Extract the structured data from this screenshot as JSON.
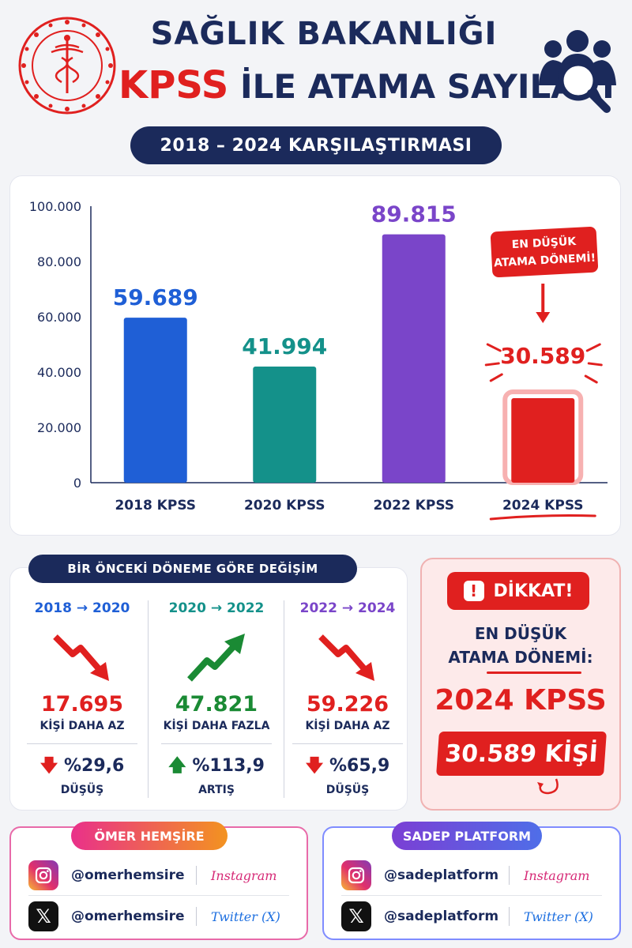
{
  "header": {
    "title_line1": "SAĞLIK BAKANLIĞI",
    "title_kpss": "KPSS",
    "title_rest": " İLE ATAMA SAYILARI",
    "subtitle": "2018 – 2024 KARŞILAŞTIRMASI",
    "logo_icon": "ministry-caduceus-seal",
    "people_icon": "people-search-icon"
  },
  "colors": {
    "navy": "#1b2a5b",
    "red": "#e0201f",
    "blue": "#1f5fd6",
    "teal": "#14918a",
    "purple": "#7a45c9",
    "green": "#1a8a34"
  },
  "chart_data": {
    "type": "bar",
    "categories": [
      "2018 KPSS",
      "2020 KPSS",
      "2022 KPSS",
      "2024 KPSS"
    ],
    "values": [
      59689,
      41994,
      89815,
      30589
    ],
    "value_labels": [
      "59.689",
      "41.994",
      "89.815",
      "30.589"
    ],
    "bar_colors": [
      "#1f5fd6",
      "#14918a",
      "#7a45c9",
      "#e0201f"
    ],
    "yticks": [
      "0",
      "20.000",
      "40.000",
      "60.000",
      "80.000",
      "100.000"
    ],
    "ylim": [
      0,
      100000
    ],
    "title": "",
    "xlabel": "",
    "ylabel": "",
    "grid": false,
    "annotation": "EN DÜŞÜK ATAMA DÖNEMİ!",
    "highlight_category": "2024 KPSS"
  },
  "changes": {
    "title": "BİR ÖNCEKİ DÖNEME GÖRE DEĞİŞİM",
    "items": [
      {
        "period": "2018 → 2020",
        "number": "17.695",
        "desc": "KİŞİ DAHA AZ",
        "percent": "%29,6",
        "direction": "DÜŞÜŞ",
        "trend": "down",
        "period_color": "#1f5fd6",
        "num_color": "#e0201f"
      },
      {
        "period": "2020 → 2022",
        "number": "47.821",
        "desc": "KİŞİ DAHA FAZLA",
        "percent": "%113,9",
        "direction": "ARTIŞ",
        "trend": "up",
        "period_color": "#14918a",
        "num_color": "#1a8a34"
      },
      {
        "period": "2022 → 2024",
        "number": "59.226",
        "desc": "KİŞİ DAHA AZ",
        "percent": "%65,9",
        "direction": "DÜŞÜŞ",
        "trend": "down",
        "period_color": "#7a45c9",
        "num_color": "#e0201f"
      }
    ]
  },
  "warning": {
    "badge": "DİKKAT!",
    "line1": "EN DÜŞÜK",
    "line2": "ATAMA DÖNEMİ:",
    "big": "2024 KPSS",
    "count": "30.589 KİŞİ"
  },
  "social": {
    "left": {
      "title": "ÖMER HEMŞİRE",
      "rows": [
        {
          "icon": "instagram-icon",
          "handle": "@omerhemsire",
          "platform": "Instagram"
        },
        {
          "icon": "x-twitter-icon",
          "handle": "@omerhemsire",
          "platform": "Twitter (X)"
        }
      ]
    },
    "right": {
      "title": "SADEP PLATFORM",
      "rows": [
        {
          "icon": "instagram-icon",
          "handle": "@sadeplatform",
          "platform": "Instagram"
        },
        {
          "icon": "x-twitter-icon",
          "handle": "@sadeplatform",
          "platform": "Twitter (X)"
        }
      ]
    }
  }
}
